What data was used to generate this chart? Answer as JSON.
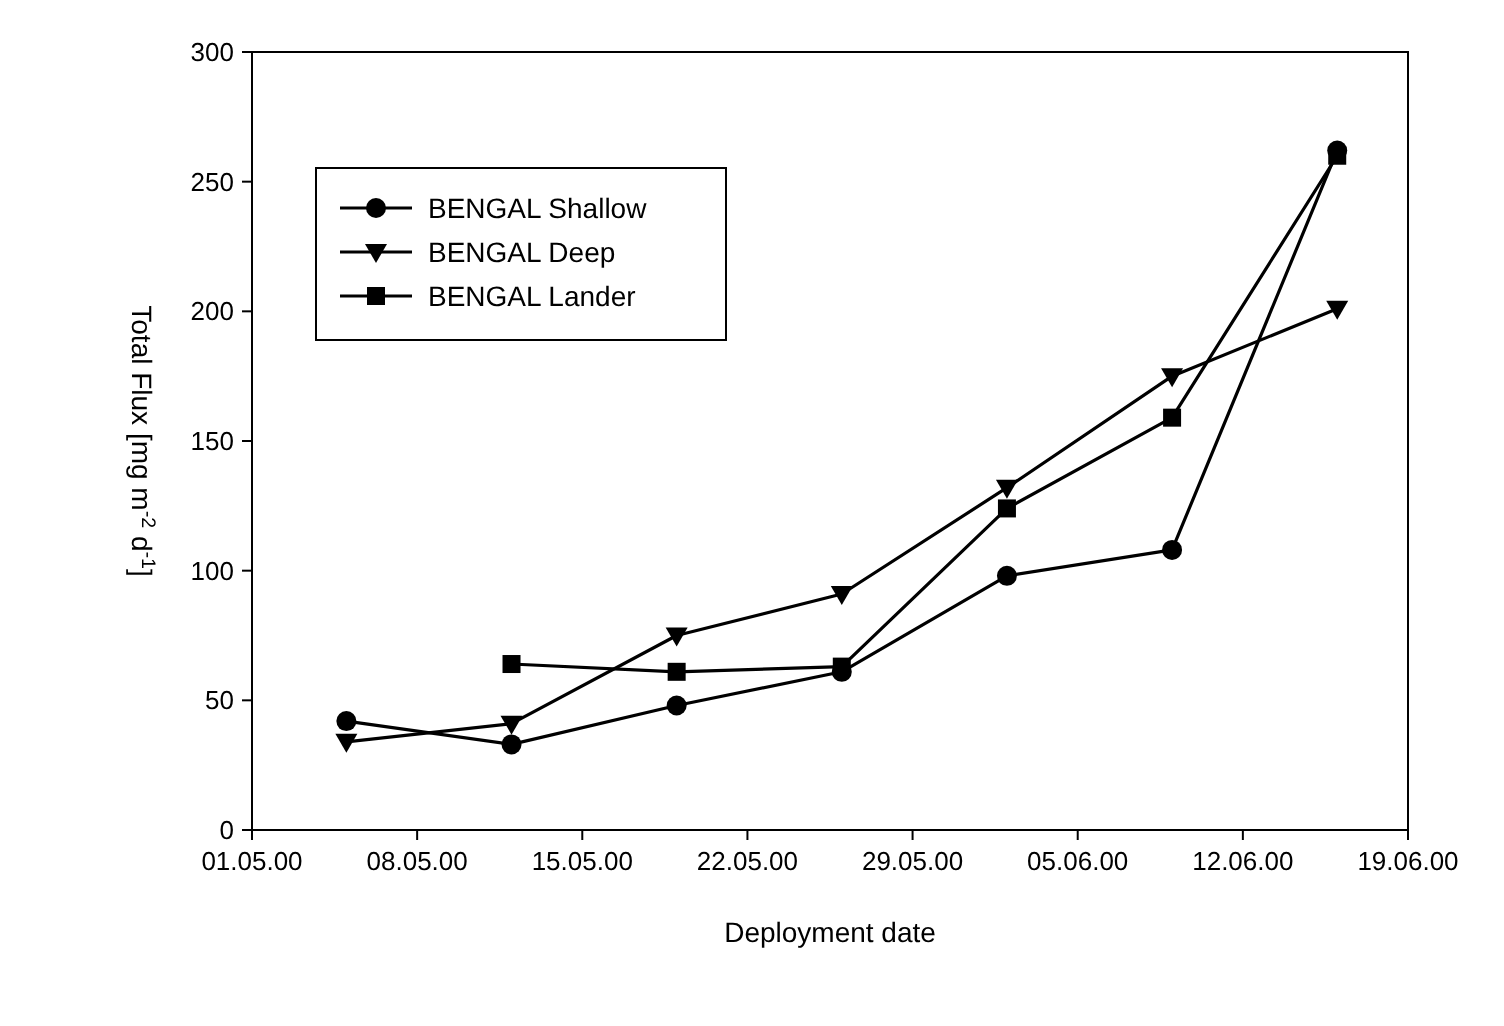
{
  "chart_data": {
    "type": "line",
    "xlabel": "Deployment date",
    "ylabel": "Total Flux [mg m$^{-2}$ d$^{-1}$]",
    "x": [
      "2000-05-05",
      "2000-05-12",
      "2000-05-19",
      "2000-05-26",
      "2000-06-02",
      "2000-06-09",
      "2000-06-16"
    ],
    "series": [
      {
        "name": "BENGAL Shallow",
        "color": "#000000",
        "marker": "circle",
        "values": [
          42,
          33,
          48,
          61,
          98,
          108,
          262
        ]
      },
      {
        "name": "BENGAL Deep",
        "color": "#000000",
        "marker": "triangle",
        "values": [
          34,
          41,
          75,
          91,
          132,
          175,
          201
        ]
      },
      {
        "name": "BENGAL Lander",
        "color": "#000000",
        "marker": "square",
        "values": [
          null,
          64,
          61,
          63,
          124,
          159,
          260
        ]
      }
    ],
    "xlim": [
      "2000-05-01",
      "2000-06-19"
    ],
    "xticks": [
      {
        "value": "2000-05-01",
        "label": "01.05.00"
      },
      {
        "value": "2000-05-08",
        "label": "08.05.00"
      },
      {
        "value": "2000-05-15",
        "label": "15.05.00"
      },
      {
        "value": "2000-05-22",
        "label": "22.05.00"
      },
      {
        "value": "2000-05-29",
        "label": "29.05.00"
      },
      {
        "value": "2000-06-05",
        "label": "05.06.00"
      },
      {
        "value": "2000-06-12",
        "label": "12.06.00"
      },
      {
        "value": "2000-06-19",
        "label": "19.06.00"
      }
    ],
    "ylim": [
      0,
      300
    ],
    "yticks": [
      0,
      50,
      100,
      150,
      200,
      250,
      300
    ],
    "legend": "top left",
    "grid": false,
    "line_style": "solid"
  }
}
